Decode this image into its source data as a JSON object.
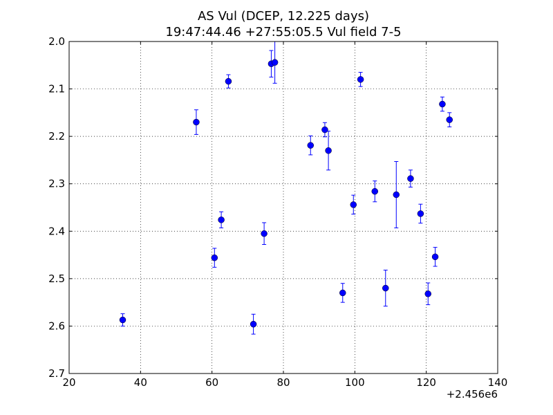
{
  "chart_data": {
    "type": "scatter",
    "title": "AS Vul (DCEP, 12.225 days)",
    "subtitle": "19:47:44.46 +27:55:05.5 Vul field 7-5",
    "xlabel": "",
    "ylabel": "",
    "x_offset_label": "+2.456e6",
    "xlim": [
      20,
      140
    ],
    "ylim": [
      2.7,
      2.0
    ],
    "y_inverted": true,
    "grid": true,
    "grid_style": "dotted",
    "marker_color": "#0000ff",
    "x_ticks": [
      20,
      40,
      60,
      80,
      100,
      120,
      140
    ],
    "x_tick_labels": [
      "20",
      "40",
      "60",
      "80",
      "100",
      "120",
      "140"
    ],
    "y_ticks": [
      2.0,
      2.1,
      2.2,
      2.3,
      2.4,
      2.5,
      2.6,
      2.7
    ],
    "y_tick_labels": [
      "2.0",
      "2.1",
      "2.2",
      "2.3",
      "2.4",
      "2.5",
      "2.6",
      "2.7"
    ],
    "points": [
      {
        "x": 35.0,
        "y": 2.587,
        "err": 0.013
      },
      {
        "x": 55.6,
        "y": 2.17,
        "err": 0.026
      },
      {
        "x": 60.7,
        "y": 2.456,
        "err": 0.02
      },
      {
        "x": 62.6,
        "y": 2.376,
        "err": 0.017
      },
      {
        "x": 64.6,
        "y": 2.084,
        "err": 0.014
      },
      {
        "x": 71.6,
        "y": 2.596,
        "err": 0.021
      },
      {
        "x": 74.6,
        "y": 2.405,
        "err": 0.023
      },
      {
        "x": 76.6,
        "y": 2.047,
        "err": 0.028
      },
      {
        "x": 77.6,
        "y": 2.044,
        "err": 0.044
      },
      {
        "x": 87.6,
        "y": 2.219,
        "err": 0.02
      },
      {
        "x": 91.6,
        "y": 2.186,
        "err": 0.015
      },
      {
        "x": 92.6,
        "y": 2.23,
        "err": 0.041
      },
      {
        "x": 96.6,
        "y": 2.53,
        "err": 0.02
      },
      {
        "x": 99.6,
        "y": 2.344,
        "err": 0.02
      },
      {
        "x": 101.6,
        "y": 2.08,
        "err": 0.015
      },
      {
        "x": 105.6,
        "y": 2.316,
        "err": 0.022
      },
      {
        "x": 108.6,
        "y": 2.52,
        "err": 0.038
      },
      {
        "x": 111.6,
        "y": 2.323,
        "err": 0.07
      },
      {
        "x": 115.6,
        "y": 2.289,
        "err": 0.018
      },
      {
        "x": 118.4,
        "y": 2.363,
        "err": 0.02
      },
      {
        "x": 120.5,
        "y": 2.532,
        "err": 0.023
      },
      {
        "x": 122.5,
        "y": 2.454,
        "err": 0.02
      },
      {
        "x": 124.5,
        "y": 2.132,
        "err": 0.015
      },
      {
        "x": 126.5,
        "y": 2.165,
        "err": 0.015
      }
    ]
  }
}
